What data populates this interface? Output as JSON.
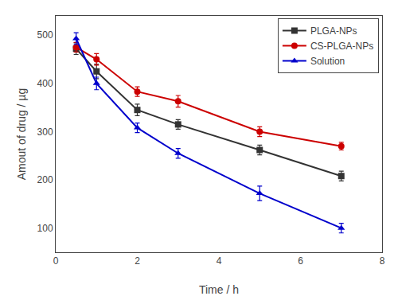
{
  "chart_data": {
    "type": "line",
    "x": [
      0.5,
      1,
      2,
      3,
      5,
      7
    ],
    "xlabel": "Time / h",
    "ylabel": "Amout of drug / µg",
    "xlim": [
      0,
      8
    ],
    "ylim": [
      50,
      540
    ],
    "xticks": [
      0,
      2,
      4,
      6,
      8
    ],
    "yticks": [
      100,
      200,
      300,
      400,
      500
    ],
    "grid": false,
    "legend": "upper right",
    "series": [
      {
        "name": "PLGA-NPs",
        "color": "#333333",
        "marker": "square",
        "values": [
          472,
          425,
          345,
          315,
          262,
          208
        ],
        "errors": [
          12,
          15,
          12,
          10,
          10,
          10
        ]
      },
      {
        "name": "CS-PLGA-NPs",
        "color": "#cc0000",
        "marker": "circle",
        "values": [
          475,
          450,
          383,
          363,
          300,
          270
        ],
        "errors": [
          10,
          12,
          10,
          12,
          10,
          8
        ]
      },
      {
        "name": "Solution",
        "color": "#0000cc",
        "marker": "triangle-up",
        "values": [
          493,
          400,
          308,
          255,
          172,
          100
        ],
        "errors": [
          12,
          13,
          10,
          10,
          15,
          10
        ]
      }
    ]
  }
}
